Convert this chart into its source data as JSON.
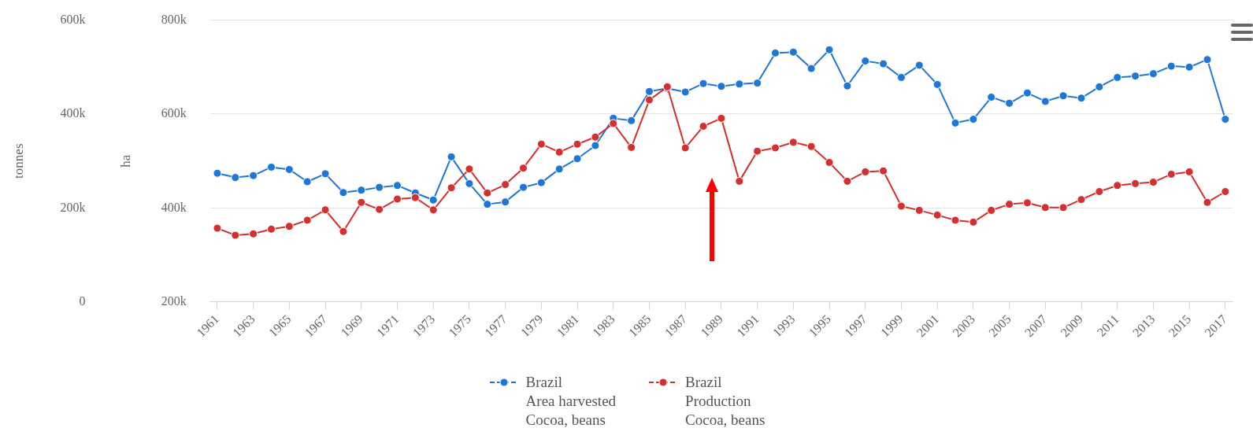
{
  "chart_data": {
    "type": "line",
    "ylabel": "tonnes",
    "y2label": "ha",
    "x": [
      1961,
      1962,
      1963,
      1964,
      1965,
      1966,
      1967,
      1968,
      1969,
      1970,
      1971,
      1972,
      1973,
      1974,
      1975,
      1976,
      1977,
      1978,
      1979,
      1980,
      1981,
      1982,
      1983,
      1984,
      1985,
      1986,
      1987,
      1988,
      1989,
      1990,
      1991,
      1992,
      1993,
      1994,
      1995,
      1996,
      1997,
      1998,
      1999,
      2000,
      2001,
      2002,
      2003,
      2004,
      2005,
      2006,
      2007,
      2008,
      2009,
      2010,
      2011,
      2012,
      2013,
      2014,
      2015,
      2016,
      2017
    ],
    "xlim": [
      1960.6,
      2017.4
    ],
    "xticks": [
      1961,
      1963,
      1965,
      1967,
      1969,
      1971,
      1973,
      1975,
      1977,
      1979,
      1981,
      1983,
      1985,
      1987,
      1989,
      1991,
      1993,
      1995,
      1997,
      1999,
      2001,
      2003,
      2005,
      2007,
      2009,
      2011,
      2013,
      2015,
      2017
    ],
    "y2lim": [
      200000,
      800000
    ],
    "y2ticks": [
      {
        "value": 200000,
        "label": "200k"
      },
      {
        "value": 400000,
        "label": "400k"
      },
      {
        "value": 600000,
        "label": "600k"
      },
      {
        "value": 800000,
        "label": "800k"
      }
    ],
    "ylim": [
      0,
      600000
    ],
    "yticks": [
      0,
      {
        "value": 200000,
        "label": "200k"
      },
      {
        "value": 400000,
        "label": "400k"
      },
      {
        "value": 600000,
        "label": "600k"
      }
    ],
    "series": [
      {
        "name": "Brazil\nArea harvested\nCocoa, beans",
        "color": "#1f77d4",
        "axis": "y2",
        "values": [
          474000,
          465000,
          469000,
          487000,
          482000,
          456000,
          473000,
          433000,
          438000,
          444000,
          448000,
          432000,
          417000,
          509000,
          452000,
          408000,
          413000,
          444000,
          454000,
          483000,
          505000,
          533000,
          591000,
          586000,
          648000,
          655000,
          647000,
          665000,
          659000,
          664000,
          666000,
          730000,
          732000,
          697000,
          737000,
          660000,
          713000,
          707000,
          678000,
          704000,
          663000,
          581000,
          589000,
          636000,
          623000,
          645000,
          627000,
          639000,
          634000,
          658000,
          678000,
          681000,
          686000,
          702000,
          700000,
          716000,
          589000
        ]
      },
      {
        "name": "Brazil\nProduction\nCocoa, beans",
        "color": "#d43030",
        "values": [
          157000,
          142000,
          145000,
          155000,
          161000,
          174000,
          196000,
          150000,
          212000,
          197000,
          219000,
          222000,
          196000,
          243000,
          283000,
          232000,
          250000,
          285000,
          336000,
          319000,
          336000,
          351000,
          380000,
          329000,
          430000,
          458000,
          328000,
          374000,
          391000,
          257000,
          321000,
          328000,
          340000,
          331000,
          297000,
          257000,
          277000,
          279000,
          204000,
          195000,
          185000,
          174000,
          170000,
          195000,
          208000,
          211000,
          201000,
          201000,
          218000,
          235000,
          248000,
          252000,
          255000,
          272000,
          277000,
          212000,
          235000
        ]
      }
    ],
    "grid": "y",
    "legend": "bottom",
    "marker": "circle",
    "line_style": "solid"
  }
}
